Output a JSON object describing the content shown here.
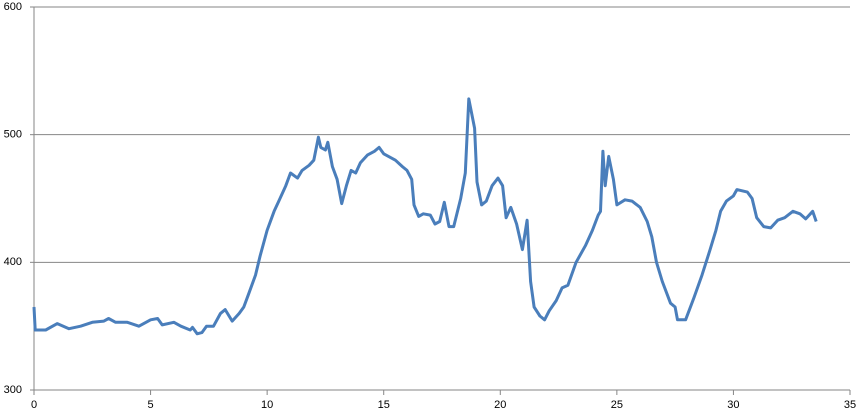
{
  "chart_data": {
    "type": "line",
    "x": [
      0,
      0.05,
      0.5,
      1.0,
      1.5,
      2.0,
      2.5,
      3.0,
      3.2,
      3.5,
      4.0,
      4.5,
      5.0,
      5.3,
      5.5,
      6.0,
      6.3,
      6.7,
      6.8,
      7.0,
      7.2,
      7.4,
      7.7,
      8.0,
      8.2,
      8.5,
      8.8,
      9.0,
      9.2,
      9.5,
      9.7,
      10.0,
      10.3,
      10.5,
      10.8,
      11.0,
      11.3,
      11.5,
      11.8,
      12.0,
      12.2,
      12.3,
      12.5,
      12.6,
      12.8,
      13.0,
      13.2,
      13.4,
      13.6,
      13.8,
      14.0,
      14.3,
      14.6,
      14.8,
      15.0,
      15.5,
      15.8,
      16.0,
      16.2,
      16.3,
      16.5,
      16.7,
      17.0,
      17.2,
      17.4,
      17.6,
      17.8,
      18.0,
      18.3,
      18.5,
      18.65,
      18.9,
      19.0,
      19.2,
      19.4,
      19.65,
      19.9,
      20.1,
      20.25,
      20.45,
      20.7,
      20.95,
      21.15,
      21.3,
      21.45,
      21.7,
      21.9,
      22.1,
      22.4,
      22.65,
      22.9,
      23.25,
      23.65,
      23.95,
      24.2,
      24.3,
      24.4,
      24.5,
      24.65,
      24.85,
      25.0,
      25.35,
      25.65,
      26.0,
      26.3,
      26.5,
      26.7,
      26.95,
      27.3,
      27.5,
      27.6,
      27.95,
      28.3,
      28.65,
      29.0,
      29.25,
      29.45,
      29.7,
      30.0,
      30.15,
      30.6,
      30.8,
      31.0,
      31.3,
      31.6,
      31.9,
      32.2,
      32.55,
      32.85,
      33.1,
      33.4,
      33.55
    ],
    "series": [
      {
        "color": "#4a7ebb",
        "values": [
          365,
          347,
          347,
          352,
          348,
          350,
          353,
          354,
          356,
          353,
          353,
          350,
          355,
          356,
          351,
          353,
          350,
          347,
          349,
          344,
          345,
          350,
          350,
          360,
          363,
          354,
          360,
          365,
          375,
          390,
          405,
          425,
          440,
          448,
          460,
          470,
          466,
          472,
          476,
          480,
          498,
          490,
          488,
          494,
          475,
          465,
          446,
          460,
          472,
          470,
          478,
          484,
          487,
          490,
          485,
          480,
          475,
          472,
          465,
          445,
          436,
          438,
          437,
          430,
          432,
          447,
          428,
          428,
          450,
          470,
          528,
          505,
          463,
          445,
          448,
          460,
          466,
          460,
          435,
          443,
          430,
          410,
          433,
          385,
          365,
          358,
          355,
          362,
          370,
          380,
          382,
          400,
          413,
          425,
          437,
          440,
          487,
          460,
          483,
          465,
          445,
          449,
          448,
          443,
          432,
          420,
          400,
          385,
          368,
          365,
          355,
          355,
          372,
          390,
          410,
          425,
          440,
          448,
          452,
          457,
          455,
          450,
          435,
          428,
          427,
          433,
          435,
          440,
          438,
          434,
          440,
          432
        ]
      }
    ],
    "xlim": [
      0,
      35
    ],
    "xticks": [
      0,
      5,
      10,
      15,
      20,
      25,
      30,
      35
    ],
    "ylim": [
      300,
      600
    ],
    "yticks": [
      300,
      400,
      500,
      600
    ],
    "grid": true
  }
}
